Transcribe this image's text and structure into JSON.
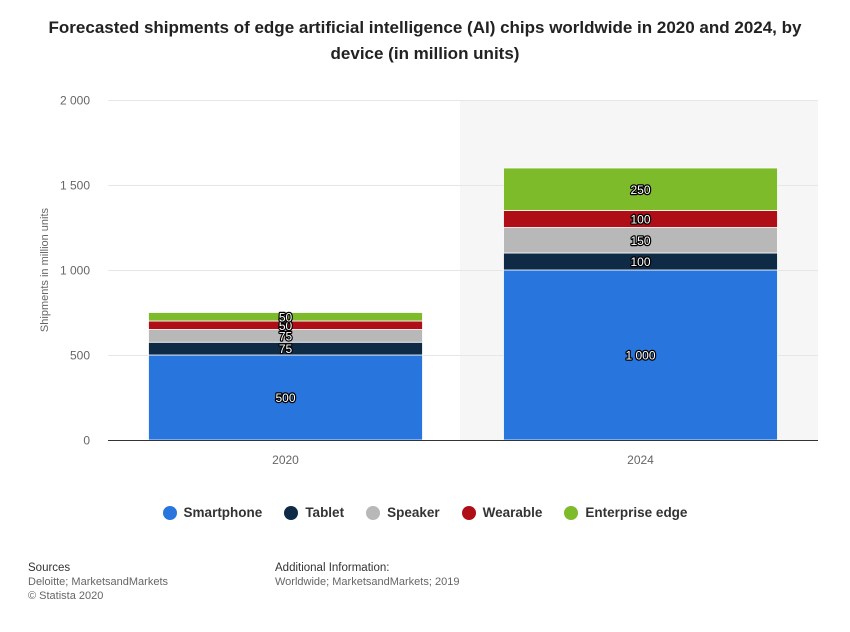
{
  "title": "Forecasted shipments of edge artificial intelligence (AI) chips worldwide in 2020 and 2024, by device (in million units)",
  "chart_data": {
    "type": "bar",
    "stacked": true,
    "categories": [
      "2020",
      "2024"
    ],
    "ylabel": "Shipments in million units",
    "ylim": [
      0,
      2000
    ],
    "yticks": [
      0,
      500,
      1000,
      1500,
      2000
    ],
    "ytick_labels": [
      "0",
      "500",
      "1 000",
      "1 500",
      "2 000"
    ],
    "grid": true,
    "legend_position": "bottom",
    "series": [
      {
        "name": "Smartphone",
        "values": [
          500,
          1000
        ],
        "labels": [
          "500",
          "1 000"
        ],
        "color": "#2876DD"
      },
      {
        "name": "Tablet",
        "values": [
          75,
          100
        ],
        "labels": [
          "75",
          "100"
        ],
        "color": "#0F2A44"
      },
      {
        "name": "Speaker",
        "values": [
          75,
          150
        ],
        "labels": [
          "75",
          "150"
        ],
        "color": "#B8B8B8"
      },
      {
        "name": "Wearable",
        "values": [
          50,
          100
        ],
        "labels": [
          "50",
          "100"
        ],
        "color": "#B00E17"
      },
      {
        "name": "Enterprise edge",
        "values": [
          50,
          250
        ],
        "labels": [
          "50",
          "250"
        ],
        "color": "#7DBB2B"
      }
    ]
  },
  "footer": {
    "sources_title": "Sources",
    "sources_line1": "Deloitte; MarketsandMarkets",
    "sources_line2": "© Statista 2020",
    "info_title": "Additional Information:",
    "info_line1": "Worldwide; MarketsandMarkets; 2019"
  }
}
